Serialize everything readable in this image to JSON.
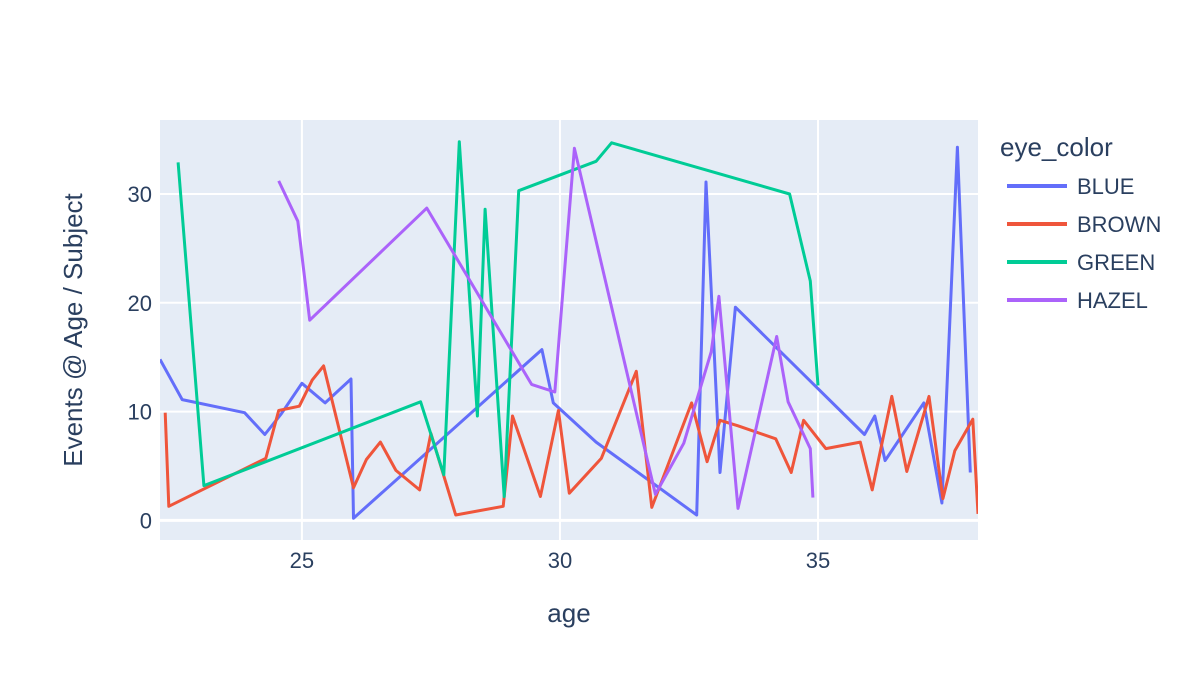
{
  "chart_data": {
    "type": "line",
    "xlabel": "age",
    "ylabel": "Events @ Age / Subject",
    "xlim": [
      22.25,
      38.1
    ],
    "ylim": [
      -1.8,
      36.8
    ],
    "xticks": [
      25,
      30,
      35
    ],
    "yticks": [
      0,
      10,
      20,
      30
    ],
    "grid": true,
    "legend": {
      "title": "eye_color",
      "placement": "right"
    },
    "series": [
      {
        "name": "BLUE",
        "color": "#636efa",
        "points": [
          [
            22.25,
            14.8
          ],
          [
            22.68,
            11.1
          ],
          [
            23.89,
            9.9
          ],
          [
            24.28,
            7.9
          ],
          [
            24.6,
            9.8
          ],
          [
            25.0,
            12.6
          ],
          [
            25.45,
            10.8
          ],
          [
            25.95,
            13.0
          ],
          [
            26.0,
            0.2
          ],
          [
            29.65,
            15.7
          ],
          [
            29.87,
            10.8
          ],
          [
            30.7,
            7.2
          ],
          [
            32.65,
            0.5
          ],
          [
            32.83,
            31.1
          ],
          [
            33.1,
            4.4
          ],
          [
            33.4,
            19.6
          ],
          [
            35.9,
            7.9
          ],
          [
            36.1,
            9.6
          ],
          [
            36.3,
            5.5
          ],
          [
            37.05,
            10.8
          ],
          [
            37.4,
            1.6
          ],
          [
            37.7,
            34.3
          ],
          [
            37.95,
            4.4
          ]
        ]
      },
      {
        "name": "BROWN",
        "color": "#ef553b",
        "points": [
          [
            22.35,
            9.9
          ],
          [
            22.42,
            1.3
          ],
          [
            24.3,
            5.7
          ],
          [
            24.55,
            10.1
          ],
          [
            24.95,
            10.5
          ],
          [
            25.2,
            12.9
          ],
          [
            25.42,
            14.2
          ],
          [
            26.0,
            3.0
          ],
          [
            26.25,
            5.6
          ],
          [
            26.52,
            7.2
          ],
          [
            26.82,
            4.6
          ],
          [
            27.28,
            2.8
          ],
          [
            27.5,
            8.0
          ],
          [
            27.98,
            0.5
          ],
          [
            28.9,
            1.3
          ],
          [
            29.08,
            9.6
          ],
          [
            29.62,
            2.2
          ],
          [
            29.97,
            10.1
          ],
          [
            30.18,
            2.5
          ],
          [
            30.8,
            5.7
          ],
          [
            31.48,
            13.7
          ],
          [
            31.78,
            1.2
          ],
          [
            32.55,
            10.8
          ],
          [
            32.85,
            5.4
          ],
          [
            33.1,
            9.2
          ],
          [
            33.45,
            8.7
          ],
          [
            34.18,
            7.5
          ],
          [
            34.48,
            4.4
          ],
          [
            34.72,
            9.2
          ],
          [
            35.15,
            6.6
          ],
          [
            35.82,
            7.2
          ],
          [
            36.05,
            2.8
          ],
          [
            36.43,
            11.4
          ],
          [
            36.72,
            4.5
          ],
          [
            37.15,
            11.4
          ],
          [
            37.42,
            2.0
          ],
          [
            37.65,
            6.4
          ],
          [
            38.0,
            9.3
          ],
          [
            38.1,
            0.6
          ]
        ]
      },
      {
        "name": "GREEN",
        "color": "#00cc96",
        "points": [
          [
            22.6,
            32.9
          ],
          [
            23.1,
            3.2
          ],
          [
            27.3,
            10.9
          ],
          [
            27.75,
            4.2
          ],
          [
            28.05,
            34.8
          ],
          [
            28.4,
            9.6
          ],
          [
            28.55,
            28.6
          ],
          [
            28.92,
            2.2
          ],
          [
            29.2,
            30.3
          ],
          [
            30.7,
            33.0
          ],
          [
            31.0,
            34.7
          ],
          [
            34.45,
            30.0
          ],
          [
            34.85,
            22.0
          ],
          [
            35.0,
            12.4
          ]
        ]
      },
      {
        "name": "HAZEL",
        "color": "#ab63fa",
        "points": [
          [
            24.55,
            31.2
          ],
          [
            24.92,
            27.5
          ],
          [
            25.15,
            18.4
          ],
          [
            27.42,
            28.7
          ],
          [
            29.45,
            12.5
          ],
          [
            29.9,
            11.8
          ],
          [
            30.28,
            34.2
          ],
          [
            31.85,
            2.4
          ],
          [
            32.4,
            7.1
          ],
          [
            32.93,
            15.5
          ],
          [
            33.08,
            20.6
          ],
          [
            33.45,
            1.1
          ],
          [
            34.2,
            16.9
          ],
          [
            34.42,
            10.9
          ],
          [
            34.85,
            6.6
          ],
          [
            34.9,
            2.1
          ]
        ]
      }
    ]
  }
}
